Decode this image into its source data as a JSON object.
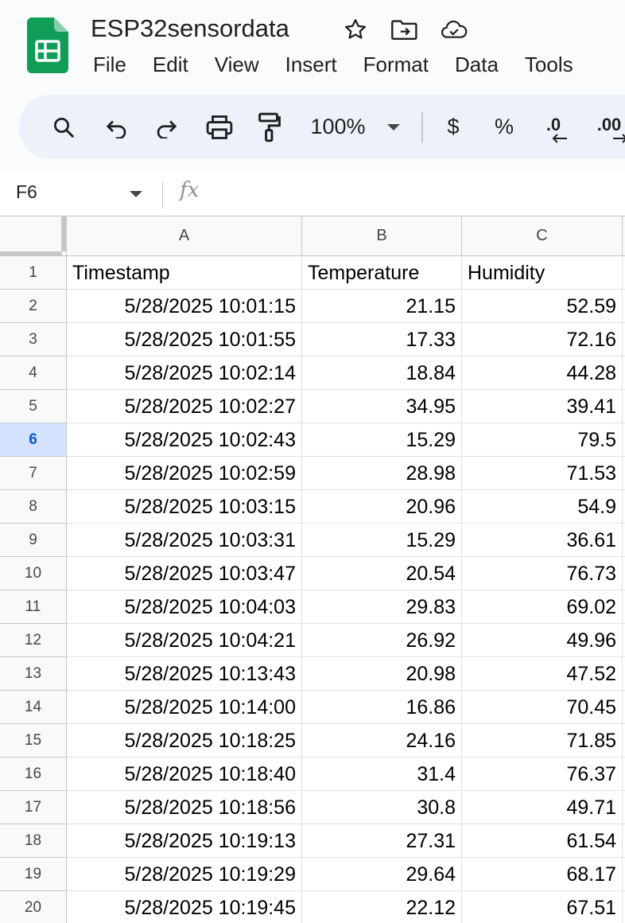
{
  "document": {
    "title": "ESP32sensordata"
  },
  "menu": [
    "File",
    "Edit",
    "View",
    "Insert",
    "Format",
    "Data",
    "Tools"
  ],
  "toolbar": {
    "zoom": "100%",
    "currency": "$",
    "percent": "%",
    "decrease_decimal": ".0",
    "increase_decimal": ".00"
  },
  "formula_bar": {
    "name_box": "F6",
    "fx_label": "fx"
  },
  "sheet": {
    "columns": [
      "A",
      "B",
      "C"
    ],
    "selected_row": 6,
    "rows": [
      {
        "n": "1",
        "a": "Timestamp",
        "b": "Temperature",
        "c": "Humidity"
      },
      {
        "n": "2",
        "a": "5/28/2025 10:01:15",
        "b": "21.15",
        "c": "52.59"
      },
      {
        "n": "3",
        "a": "5/28/2025 10:01:55",
        "b": "17.33",
        "c": "72.16"
      },
      {
        "n": "4",
        "a": "5/28/2025 10:02:14",
        "b": "18.84",
        "c": "44.28"
      },
      {
        "n": "5",
        "a": "5/28/2025 10:02:27",
        "b": "34.95",
        "c": "39.41"
      },
      {
        "n": "6",
        "a": "5/28/2025 10:02:43",
        "b": "15.29",
        "c": "79.5"
      },
      {
        "n": "7",
        "a": "5/28/2025 10:02:59",
        "b": "28.98",
        "c": "71.53"
      },
      {
        "n": "8",
        "a": "5/28/2025 10:03:15",
        "b": "20.96",
        "c": "54.9"
      },
      {
        "n": "9",
        "a": "5/28/2025 10:03:31",
        "b": "15.29",
        "c": "36.61"
      },
      {
        "n": "10",
        "a": "5/28/2025 10:03:47",
        "b": "20.54",
        "c": "76.73"
      },
      {
        "n": "11",
        "a": "5/28/2025 10:04:03",
        "b": "29.83",
        "c": "69.02"
      },
      {
        "n": "12",
        "a": "5/28/2025 10:04:21",
        "b": "26.92",
        "c": "49.96"
      },
      {
        "n": "13",
        "a": "5/28/2025 10:13:43",
        "b": "20.98",
        "c": "47.52"
      },
      {
        "n": "14",
        "a": "5/28/2025 10:14:00",
        "b": "16.86",
        "c": "70.45"
      },
      {
        "n": "15",
        "a": "5/28/2025 10:18:25",
        "b": "24.16",
        "c": "71.85"
      },
      {
        "n": "16",
        "a": "5/28/2025 10:18:40",
        "b": "31.4",
        "c": "76.37"
      },
      {
        "n": "17",
        "a": "5/28/2025 10:18:56",
        "b": "30.8",
        "c": "49.71"
      },
      {
        "n": "18",
        "a": "5/28/2025 10:19:13",
        "b": "27.31",
        "c": "61.54"
      },
      {
        "n": "19",
        "a": "5/28/2025 10:19:29",
        "b": "29.64",
        "c": "68.17"
      },
      {
        "n": "20",
        "a": "5/28/2025 10:19:45",
        "b": "22.12",
        "c": "67.51"
      }
    ]
  },
  "icons": {
    "logo": "sheets-logo-icon",
    "star": "star-icon",
    "move": "move-to-folder-icon",
    "cloud": "cloud-saved-icon",
    "search": "search-icon",
    "undo": "undo-icon",
    "redo": "redo-icon",
    "print": "print-icon",
    "paint": "paint-format-icon"
  },
  "colors": {
    "brand_green": "#0f9d58",
    "selected_row_header": "#d3e3fd",
    "selected_row_text": "#0b57d0"
  }
}
